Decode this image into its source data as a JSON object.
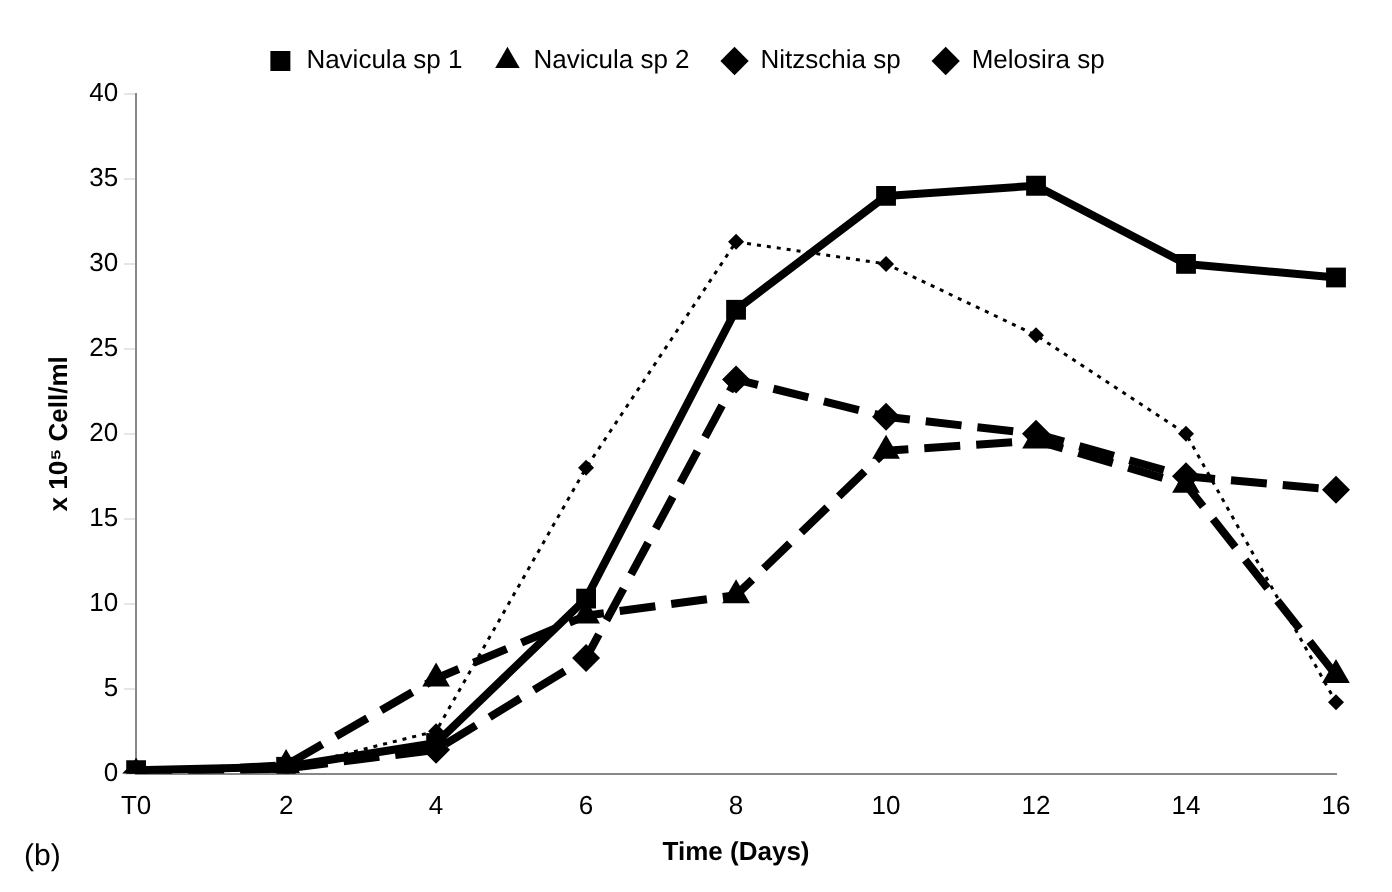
{
  "chart_data": {
    "type": "line",
    "xlabel": "Time (Days)",
    "ylabel": "x 10⁵ Cell/ml",
    "categories": [
      "T0",
      "2",
      "4",
      "6",
      "8",
      "10",
      "12",
      "14",
      "16"
    ],
    "series": [
      {
        "name": "Navicula sp 1",
        "color": "#000000",
        "marker": "square",
        "line_style": "solid",
        "values": [
          0.2,
          0.4,
          1.8,
          10.3,
          27.3,
          34,
          34.6,
          30,
          29.2
        ]
      },
      {
        "name": "Navicula sp 2",
        "color": "#000000",
        "marker": "triangle",
        "line_style": "dashed",
        "values": [
          0,
          0.5,
          5.6,
          9.3,
          10.5,
          19,
          19.6,
          17,
          5.8
        ]
      },
      {
        "name": "Nitzschia sp",
        "color": "#000000",
        "marker": "diamond",
        "line_style": "dashed",
        "values": [
          0,
          0.3,
          1.4,
          6.8,
          23.2,
          21,
          20,
          17.5,
          16.7
        ]
      },
      {
        "name": "Melosira sp",
        "color": "#000000",
        "marker": "diamond",
        "line_style": "dotted",
        "values": [
          0.1,
          0.3,
          2.5,
          18,
          31.3,
          30,
          25.8,
          20,
          4.2
        ]
      }
    ],
    "ylim": [
      0,
      40
    ],
    "yticks": [
      0,
      5,
      10,
      15,
      20,
      25,
      30,
      35,
      40
    ],
    "grid": false,
    "legend": "top",
    "annotations": [
      "(b)"
    ]
  }
}
